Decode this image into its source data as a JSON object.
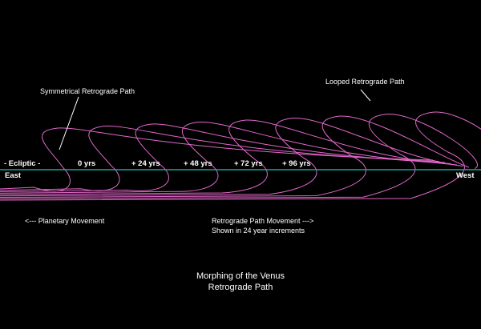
{
  "colors": {
    "background": "#000000",
    "ecliptic": "#1aa39a",
    "path": "#e066c8",
    "text": "#ffffff",
    "pointer": "#ffffff"
  },
  "labels": {
    "symmetrical": "Symmetrical Retrograde Path",
    "looped": "Looped Retrograde Path",
    "ecliptic": "- Ecliptic -",
    "east": "East",
    "west": "West",
    "planetary_movement": "<--- Planetary Movement",
    "path_movement_line1": "Retrograde Path Movement --->",
    "path_movement_line2": "Shown in 24 year increments",
    "title_line1": "Morphing of the Venus",
    "title_line2": "Retrograde Path"
  },
  "increments": [
    "0 yrs",
    "+ 24 yrs",
    "+ 48 yrs",
    "+ 72 yrs",
    "+ 96 yrs"
  ]
}
